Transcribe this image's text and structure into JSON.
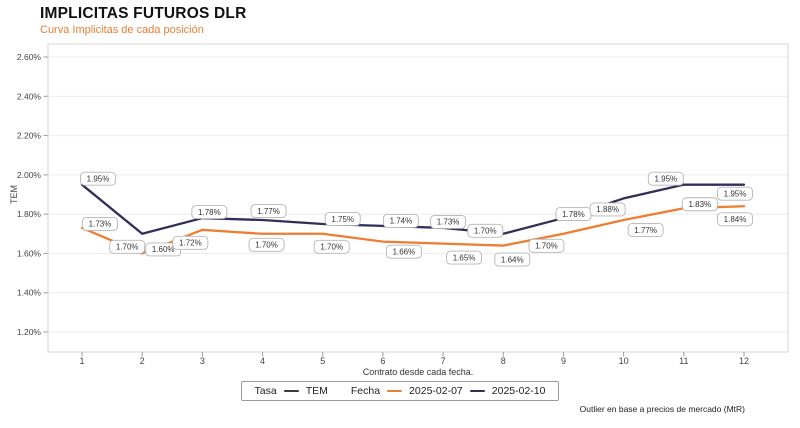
{
  "header": {
    "title": "IMPLICITAS FUTUROS DLR",
    "subtitle": "Curva Implicitas de cada posición"
  },
  "chart_data": {
    "type": "line",
    "x": [
      1,
      2,
      3,
      4,
      5,
      6,
      7,
      8,
      9,
      10,
      11,
      12
    ],
    "series": [
      {
        "name": "2025-02-07",
        "color": "#ed7d31",
        "values": [
          1.73,
          1.6,
          1.72,
          1.7,
          1.7,
          1.66,
          1.65,
          1.64,
          1.7,
          1.77,
          1.83,
          1.84
        ]
      },
      {
        "name": "2025-02-10",
        "color": "#312e5a",
        "values": [
          1.95,
          1.7,
          1.78,
          1.77,
          1.75,
          1.74,
          1.73,
          1.7,
          1.78,
          1.88,
          1.95,
          1.95
        ]
      }
    ],
    "title": "IMPLICITAS FUTUROS DLR",
    "subtitle": "Curva Implicitas de cada posición",
    "xlabel": "Contrato desde cada fecha.",
    "ylabel": "TEM",
    "ylim": [
      1.2,
      2.6
    ],
    "yticks": [
      "1.20%",
      "1.40%",
      "1.60%",
      "1.80%",
      "2.00%",
      "2.20%",
      "2.40%",
      "2.60%"
    ],
    "grid": "horizontal",
    "legend_position": "bottom",
    "point_labels": true
  },
  "legend": {
    "tasa_label": "Tasa",
    "tem_label": "TEM",
    "tem_color": "#3a3a3a",
    "fecha_label": "Fecha"
  },
  "footnote": "Outlier en base a precios de mercado (MtR)",
  "colors": {
    "accent_orange": "#ed7d31",
    "navy": "#312e5a",
    "grid": "#ebebeb",
    "plot_border": "#d4d4d4",
    "axis_text": "#444444",
    "label_border": "#b5b5b5"
  }
}
